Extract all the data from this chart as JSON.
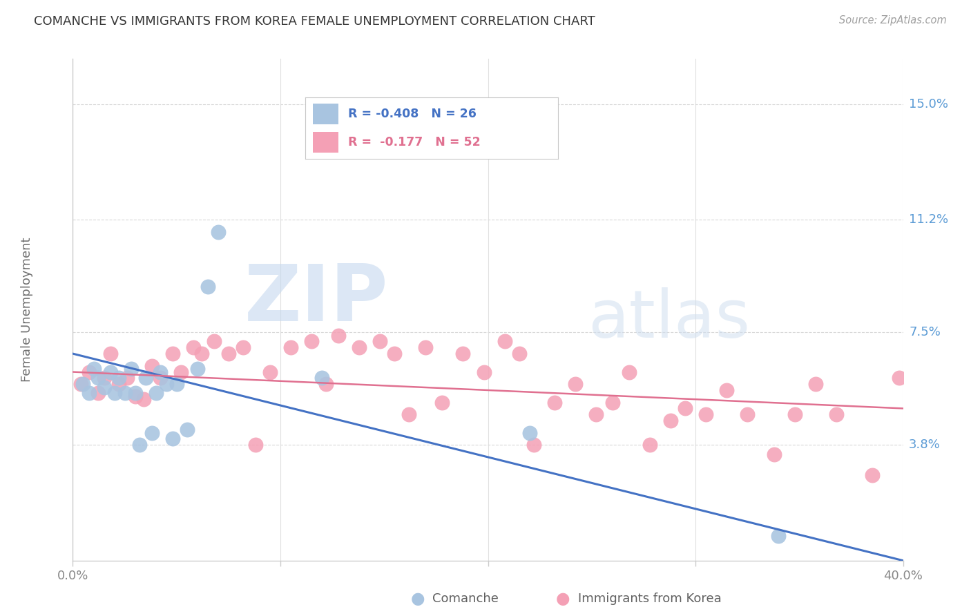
{
  "title": "COMANCHE VS IMMIGRANTS FROM KOREA FEMALE UNEMPLOYMENT CORRELATION CHART",
  "source": "Source: ZipAtlas.com",
  "ylabel": "Female Unemployment",
  "watermark_zip": "ZIP",
  "watermark_atlas": "atlas",
  "xlim": [
    0.0,
    0.4
  ],
  "ylim": [
    0.0,
    0.165
  ],
  "ytick_vals": [
    0.038,
    0.075,
    0.112,
    0.15
  ],
  "ytick_labels": [
    "3.8%",
    "7.5%",
    "11.2%",
    "15.0%"
  ],
  "xtick_vals": [
    0.0,
    0.1,
    0.2,
    0.3,
    0.4
  ],
  "xtick_labels": [
    "0.0%",
    "",
    "",
    "",
    "40.0%"
  ],
  "comanche_color": "#a8c4e0",
  "korea_color": "#f4a0b5",
  "line_comanche_color": "#4472c4",
  "line_korea_color": "#e07090",
  "grid_color": "#d8d8d8",
  "title_color": "#383838",
  "ytick_label_color": "#5b9bd5",
  "xtick_label_color": "#888888",
  "source_color": "#a0a0a0",
  "ylabel_color": "#707070",
  "legend_border_color": "#c8c8c8",
  "comanche_x": [
    0.005,
    0.008,
    0.01,
    0.012,
    0.015,
    0.018,
    0.02,
    0.022,
    0.025,
    0.028,
    0.03,
    0.032,
    0.035,
    0.038,
    0.04,
    0.042,
    0.045,
    0.048,
    0.05,
    0.055,
    0.06,
    0.065,
    0.07,
    0.12,
    0.22,
    0.34
  ],
  "comanche_y": [
    0.058,
    0.055,
    0.063,
    0.06,
    0.057,
    0.062,
    0.055,
    0.06,
    0.055,
    0.063,
    0.055,
    0.038,
    0.06,
    0.042,
    0.055,
    0.062,
    0.058,
    0.04,
    0.058,
    0.043,
    0.063,
    0.09,
    0.108,
    0.06,
    0.042,
    0.008
  ],
  "korea_x": [
    0.004,
    0.008,
    0.012,
    0.015,
    0.018,
    0.022,
    0.026,
    0.03,
    0.034,
    0.038,
    0.042,
    0.048,
    0.052,
    0.058,
    0.062,
    0.068,
    0.075,
    0.082,
    0.088,
    0.095,
    0.105,
    0.115,
    0.122,
    0.128,
    0.138,
    0.148,
    0.155,
    0.162,
    0.17,
    0.178,
    0.188,
    0.198,
    0.208,
    0.215,
    0.222,
    0.232,
    0.242,
    0.252,
    0.26,
    0.268,
    0.278,
    0.288,
    0.295,
    0.305,
    0.315,
    0.325,
    0.338,
    0.348,
    0.358,
    0.368,
    0.385,
    0.398
  ],
  "korea_y": [
    0.058,
    0.062,
    0.055,
    0.06,
    0.068,
    0.058,
    0.06,
    0.054,
    0.053,
    0.064,
    0.06,
    0.068,
    0.062,
    0.07,
    0.068,
    0.072,
    0.068,
    0.07,
    0.038,
    0.062,
    0.07,
    0.072,
    0.058,
    0.074,
    0.07,
    0.072,
    0.068,
    0.048,
    0.07,
    0.052,
    0.068,
    0.062,
    0.072,
    0.068,
    0.038,
    0.052,
    0.058,
    0.048,
    0.052,
    0.062,
    0.038,
    0.046,
    0.05,
    0.048,
    0.056,
    0.048,
    0.035,
    0.048,
    0.058,
    0.048,
    0.028,
    0.06
  ]
}
